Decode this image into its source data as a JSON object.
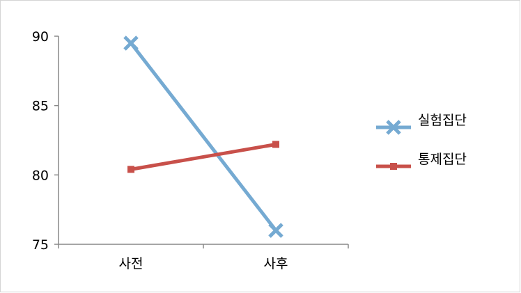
{
  "chart_data": {
    "type": "line",
    "categories": [
      "사전",
      "사후"
    ],
    "series": [
      {
        "name": "실험집단",
        "values": [
          89.5,
          76.0
        ],
        "color": "#75aad2",
        "marker": "x"
      },
      {
        "name": "통제집단",
        "values": [
          80.4,
          82.2
        ],
        "color": "#c8504a",
        "marker": "square"
      }
    ],
    "yticks": [
      75,
      80,
      85,
      90
    ],
    "ylim": [
      75,
      90
    ],
    "title": "",
    "xlabel": "",
    "ylabel": "",
    "grid": false,
    "legend_position": "right"
  }
}
